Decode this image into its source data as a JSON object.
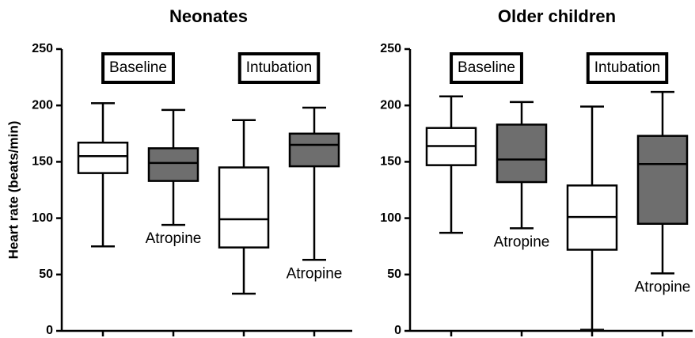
{
  "chart_data": [
    {
      "type": "box",
      "title": "Neonates",
      "y_label": "Heart rate (beats/min)",
      "ylim": [
        0,
        250
      ],
      "yticks": [
        0,
        50,
        100,
        150,
        200,
        250
      ],
      "categories": [
        null,
        null,
        null,
        null
      ],
      "group_labels": [
        "Baseline",
        "Intubation"
      ],
      "annotations": [
        "Atropine",
        "Atropine"
      ],
      "boxes": [
        {
          "min": 75,
          "q1": 140,
          "median": 155,
          "q3": 167,
          "max": 202,
          "color": "#ffffff"
        },
        {
          "min": 94,
          "q1": 133,
          "median": 149,
          "q3": 162,
          "max": 196,
          "color": "#6e6e6e"
        },
        {
          "min": 33,
          "q1": 74,
          "median": 99,
          "q3": 145,
          "max": 187,
          "color": "#ffffff"
        },
        {
          "min": 63,
          "q1": 146,
          "median": 165,
          "q3": 175,
          "max": 198,
          "color": "#6e6e6e"
        }
      ]
    },
    {
      "type": "box",
      "title": "Older children",
      "ylim": [
        0,
        250
      ],
      "yticks": [
        0,
        50,
        100,
        150,
        200,
        250
      ],
      "categories": [
        null,
        null,
        null,
        null
      ],
      "group_labels": [
        "Baseline",
        "Intubation"
      ],
      "annotations": [
        "Atropine",
        "Atropine"
      ],
      "boxes": [
        {
          "min": 87,
          "q1": 147,
          "median": 164,
          "q3": 180,
          "max": 208,
          "color": "#ffffff"
        },
        {
          "min": 91,
          "q1": 132,
          "median": 152,
          "q3": 183,
          "max": 203,
          "color": "#6e6e6e"
        },
        {
          "min": 1,
          "q1": 72,
          "median": 101,
          "q3": 129,
          "max": 199,
          "color": "#ffffff"
        },
        {
          "min": 51,
          "q1": 95,
          "median": 148,
          "q3": 173,
          "max": 212,
          "color": "#6e6e6e"
        }
      ]
    }
  ]
}
